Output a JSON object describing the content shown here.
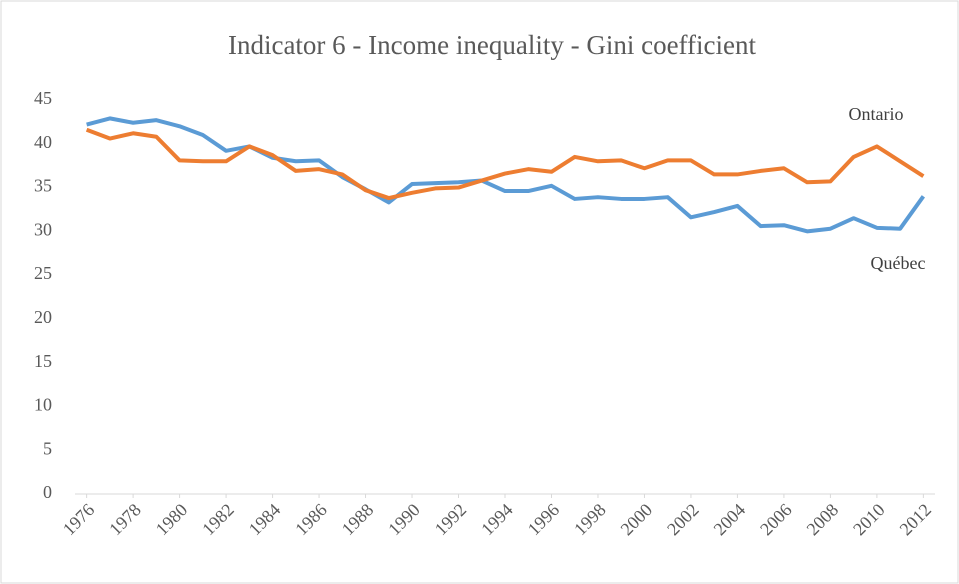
{
  "chart_data": {
    "type": "line",
    "title": "Indicator 6 - Income inequality - Gini coefficient",
    "x": [
      1976,
      1977,
      1978,
      1979,
      1980,
      1981,
      1982,
      1983,
      1984,
      1985,
      1986,
      1987,
      1988,
      1989,
      1990,
      1991,
      1992,
      1993,
      1994,
      1995,
      1996,
      1997,
      1998,
      1999,
      2000,
      2001,
      2002,
      2003,
      2004,
      2005,
      2006,
      2007,
      2008,
      2009,
      2010,
      2011,
      2012
    ],
    "series": [
      {
        "name": "Québec",
        "color": "#5b9bd5",
        "values": [
          42.2,
          42.9,
          42.4,
          42.7,
          42.0,
          41.0,
          39.2,
          39.7,
          38.4,
          38.0,
          38.1,
          36.2,
          34.8,
          33.3,
          35.4,
          35.5,
          35.6,
          35.8,
          34.6,
          34.6,
          35.2,
          33.7,
          33.9,
          33.7,
          33.7,
          33.9,
          31.6,
          32.2,
          32.9,
          30.6,
          30.7,
          30.0,
          30.3,
          31.5,
          30.4,
          30.3,
          34.0
        ]
      },
      {
        "name": "Ontario",
        "color": "#ed7d31",
        "values": [
          41.6,
          40.6,
          41.2,
          40.8,
          38.1,
          38.0,
          38.0,
          39.7,
          38.7,
          36.9,
          37.1,
          36.5,
          34.7,
          33.8,
          34.4,
          34.9,
          35.0,
          35.8,
          36.6,
          37.1,
          36.8,
          38.5,
          38.0,
          38.1,
          37.2,
          38.1,
          38.1,
          36.5,
          36.5,
          36.9,
          37.2,
          35.6,
          35.7,
          38.5,
          39.7,
          38.0,
          36.3
        ]
      }
    ],
    "xlim": [
      1975.5,
      2012.5
    ],
    "xticks": [
      1976,
      1978,
      1980,
      1982,
      1984,
      1986,
      1988,
      1990,
      1992,
      1994,
      1996,
      1998,
      2000,
      2002,
      2004,
      2006,
      2008,
      2010,
      2012
    ],
    "ylim": [
      0,
      45
    ],
    "yticks": [
      0,
      5,
      10,
      15,
      20,
      25,
      30,
      35,
      40,
      45
    ],
    "grid": false
  }
}
